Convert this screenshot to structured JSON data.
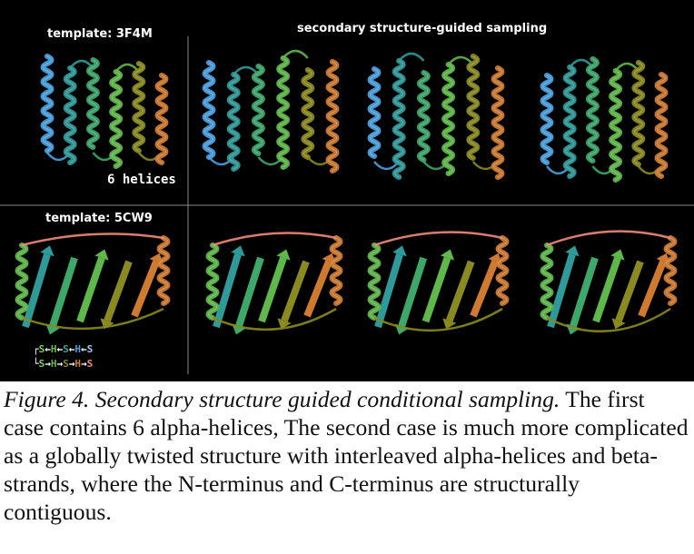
{
  "panels": {
    "top_left_title": "template: 3F4M",
    "top_right_title": "secondary structure-guided sampling",
    "top_left_note": "6 helices",
    "bottom_left_title": "template: 5CW9"
  },
  "topology": {
    "row1": [
      {
        "t": "S",
        "c": "#7ccf5a"
      },
      {
        "t": "←",
        "c": "#ffffff"
      },
      {
        "t": "H",
        "c": "#6fbf4a"
      },
      {
        "t": "←",
        "c": "#ffffff"
      },
      {
        "t": "S",
        "c": "#3aa6a0"
      },
      {
        "t": "←",
        "c": "#ffffff"
      },
      {
        "t": "H",
        "c": "#4aa0e0"
      },
      {
        "t": "←",
        "c": "#ffffff"
      },
      {
        "t": "S",
        "c": "#a9c8ff"
      }
    ],
    "row2": [
      {
        "t": "S",
        "c": "#7ccf5a"
      },
      {
        "t": "→",
        "c": "#ffffff"
      },
      {
        "t": "H",
        "c": "#5fb84a"
      },
      {
        "t": "→",
        "c": "#ffffff"
      },
      {
        "t": "S",
        "c": "#8a8a20"
      },
      {
        "t": "→",
        "c": "#ffffff"
      },
      {
        "t": "H",
        "c": "#d07a30"
      },
      {
        "t": "→",
        "c": "#ffffff"
      },
      {
        "t": "S",
        "c": "#f28a7a"
      }
    ]
  },
  "caption": {
    "title": "Figure 4. Secondary structure guided conditional sampling.",
    "body": " The first case contains 6 alpha-helices, The second case is much more complicated as a globally twisted structure with interleaved alpha-helices and beta-strands, where the N-terminus and C-terminus are structurally contiguous."
  },
  "colors": {
    "background": "#000000",
    "divider": "#8a8a8a",
    "palette": [
      "#a9c8ff",
      "#4aa0e0",
      "#2f9a9a",
      "#3ca86a",
      "#5fb84a",
      "#8a8a20",
      "#d07a30",
      "#f28a7a"
    ]
  }
}
